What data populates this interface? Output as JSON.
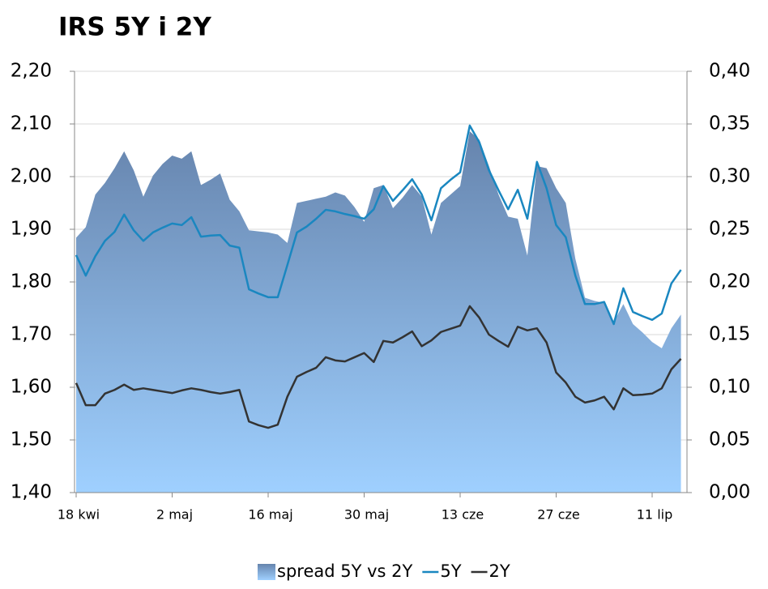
{
  "chart_data": {
    "type": "line",
    "title": "IRS 5Y i 2Y",
    "categories": [
      "18 kwi",
      null,
      null,
      null,
      null,
      null,
      null,
      null,
      null,
      null,
      "2 maj",
      null,
      null,
      null,
      null,
      null,
      null,
      null,
      null,
      null,
      "16 maj",
      null,
      null,
      null,
      null,
      null,
      null,
      null,
      null,
      null,
      "30 maj",
      null,
      null,
      null,
      null,
      null,
      null,
      null,
      null,
      null,
      "13 cze",
      null,
      null,
      null,
      null,
      null,
      null,
      null,
      null,
      null,
      "27 cze",
      null,
      null,
      null,
      null,
      null,
      null,
      null,
      null,
      null,
      "11 lip",
      null,
      null,
      null
    ],
    "ylim": [
      1.4,
      2.2
    ],
    "yticks": [
      {
        "value": 1.4,
        "label": "1,40"
      },
      {
        "value": 1.5,
        "label": "1,50"
      },
      {
        "value": 1.6,
        "label": "1,60"
      },
      {
        "value": 1.7,
        "label": "1,70"
      },
      {
        "value": 1.8,
        "label": "1,80"
      },
      {
        "value": 1.9,
        "label": "1,90"
      },
      {
        "value": 2.0,
        "label": "2,00"
      },
      {
        "value": 2.1,
        "label": "2,10"
      },
      {
        "value": 2.2,
        "label": "2,20"
      }
    ],
    "y2lim": [
      0,
      0.4
    ],
    "y2ticks": [
      {
        "value": 0,
        "label": "0,00"
      },
      {
        "value": 0.05,
        "label": "0,05"
      },
      {
        "value": 0.1,
        "label": "0,10"
      },
      {
        "value": 0.15,
        "label": "0,15"
      },
      {
        "value": 0.2,
        "label": "0,20"
      },
      {
        "value": 0.25,
        "label": "0,25"
      },
      {
        "value": 0.3,
        "label": "0,30"
      },
      {
        "value": 0.35,
        "label": "0,35"
      },
      {
        "value": 0.4,
        "label": "0,40"
      }
    ],
    "grid": true,
    "legend": "bottom",
    "series": [
      {
        "name": "spread 5Y vs 2Y",
        "type": "area",
        "axis": "y2",
        "color": "#7f9fc8",
        "values": [
          0.242,
          0.252,
          0.283,
          0.294,
          0.308,
          0.324,
          0.306,
          0.281,
          0.301,
          0.312,
          0.32,
          0.317,
          0.324,
          0.292,
          0.297,
          0.303,
          0.278,
          0.267,
          0.249,
          0.248,
          0.247,
          0.245,
          0.237,
          0.275,
          0.277,
          0.279,
          0.281,
          0.285,
          0.282,
          0.271,
          0.257,
          0.289,
          0.292,
          0.27,
          0.28,
          0.292,
          0.281,
          0.245,
          0.275,
          0.283,
          0.291,
          0.343,
          0.335,
          0.31,
          0.283,
          0.262,
          0.26,
          0.225,
          0.31,
          0.308,
          0.289,
          0.275,
          0.222,
          0.185,
          0.182,
          0.18,
          0.162,
          0.179,
          0.16,
          0.152,
          0.143,
          0.137,
          0.156,
          0.169
        ]
      },
      {
        "name": "5Y",
        "type": "line",
        "axis": "y",
        "color": "#1a87c0",
        "values": [
          1.851,
          1.812,
          1.849,
          1.878,
          1.895,
          1.928,
          1.898,
          1.878,
          1.894,
          1.903,
          1.911,
          1.908,
          1.923,
          1.886,
          1.888,
          1.889,
          1.869,
          1.865,
          1.786,
          1.778,
          1.771,
          1.771,
          1.832,
          1.894,
          1.905,
          1.92,
          1.937,
          1.934,
          1.929,
          1.925,
          1.92,
          1.938,
          1.982,
          1.954,
          1.974,
          1.995,
          1.966,
          1.917,
          1.978,
          1.994,
          2.008,
          2.097,
          2.065,
          2.012,
          1.974,
          1.938,
          1.975,
          1.92,
          2.028,
          1.978,
          1.908,
          1.885,
          1.812,
          1.758,
          1.758,
          1.762,
          1.72,
          1.788,
          1.743,
          1.735,
          1.728,
          1.74,
          1.797,
          1.823
        ]
      },
      {
        "name": "2Y",
        "type": "line",
        "axis": "y",
        "color": "#333333",
        "values": [
          1.608,
          1.566,
          1.566,
          1.588,
          1.595,
          1.605,
          1.595,
          1.598,
          1.595,
          1.592,
          1.589,
          1.594,
          1.598,
          1.595,
          1.591,
          1.588,
          1.591,
          1.595,
          1.535,
          1.528,
          1.523,
          1.529,
          1.582,
          1.62,
          1.629,
          1.637,
          1.657,
          1.651,
          1.649,
          1.657,
          1.665,
          1.648,
          1.688,
          1.685,
          1.695,
          1.706,
          1.678,
          1.689,
          1.705,
          1.711,
          1.717,
          1.754,
          1.732,
          1.7,
          1.688,
          1.677,
          1.715,
          1.708,
          1.712,
          1.685,
          1.628,
          1.609,
          1.582,
          1.571,
          1.575,
          1.582,
          1.558,
          1.598,
          1.585,
          1.586,
          1.588,
          1.598,
          1.634,
          1.654
        ]
      }
    ]
  }
}
